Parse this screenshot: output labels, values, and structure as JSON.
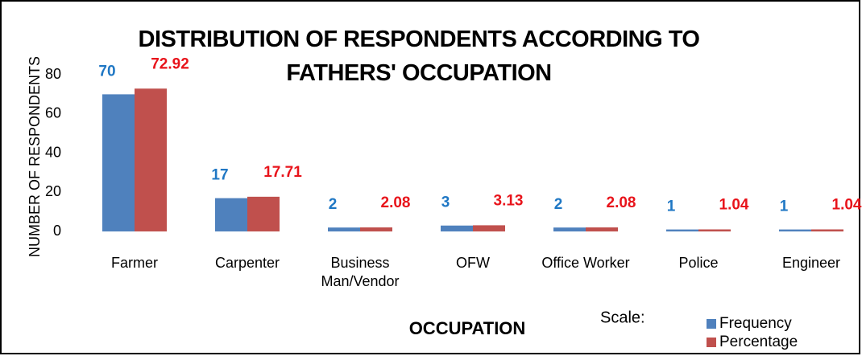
{
  "chart_data": {
    "type": "bar",
    "title": "DISTRIBUTION OF RESPONDENTS ACCORDING TO FATHERS' OCCUPATION",
    "y_label": "NUMBER OF RESPONDENTS",
    "x_label": "OCCUPATION",
    "legend_title": "Scale:",
    "categories": [
      "Farmer",
      "Carpenter",
      "Business Man/Vendor",
      "OFW",
      "Office Worker",
      "Police",
      "Engineer"
    ],
    "series": [
      {
        "name": "Frequency",
        "color": "#4f81bd",
        "label_color": "#1f77c4",
        "values": [
          70,
          17,
          2,
          3,
          2,
          1,
          1
        ]
      },
      {
        "name": "Percentage",
        "color": "#c0504d",
        "label_color": "#e8141b",
        "values": [
          72.92,
          17.71,
          2.08,
          3.13,
          2.08,
          1.04,
          1.04
        ]
      }
    ],
    "ylim": [
      0,
      80
    ],
    "yticks": [
      0,
      20,
      40,
      60,
      80
    ],
    "grid": false,
    "legend": "bottom-right"
  }
}
